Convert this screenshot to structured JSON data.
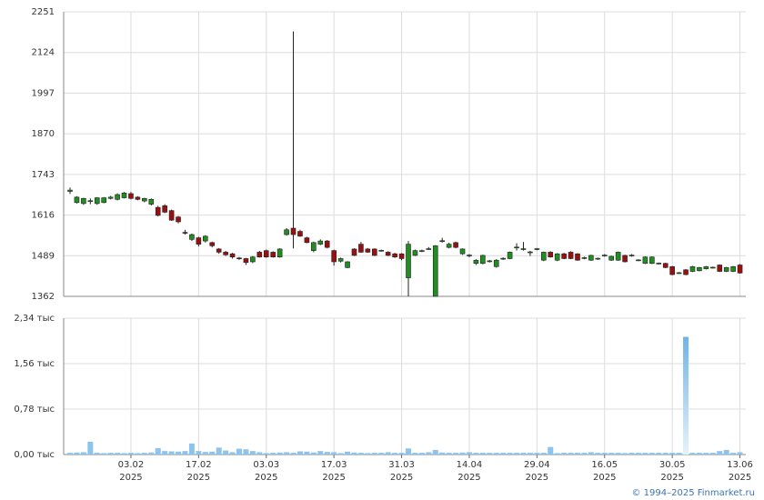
{
  "chart_data": {
    "type": "candlestick",
    "categories": [
      null,
      null,
      null,
      null,
      null,
      null,
      null,
      null,
      null,
      "03.02\n2025",
      null,
      null,
      null,
      null,
      null,
      null,
      null,
      null,
      null,
      "17.02\n2025",
      null,
      null,
      null,
      null,
      null,
      null,
      null,
      null,
      null,
      "03.03\n2025",
      null,
      null,
      null,
      null,
      null,
      null,
      null,
      null,
      null,
      "17.03\n2025",
      null,
      null,
      null,
      null,
      null,
      null,
      null,
      null,
      null,
      "31.03\n2025",
      null,
      null,
      null,
      null,
      null,
      null,
      null,
      null,
      null,
      "14.04\n2025",
      null,
      null,
      null,
      null,
      null,
      null,
      null,
      null,
      null,
      "29.04\n2025",
      null,
      null,
      null,
      null,
      null,
      null,
      null,
      null,
      null,
      "16.05\n2025",
      null,
      null,
      null,
      null,
      null,
      null,
      null,
      null,
      null,
      "30.05\n2025",
      null,
      null,
      null,
      null,
      null,
      null,
      null,
      null,
      null,
      "13.06\n2025"
    ],
    "ohlc": [
      [
        1690,
        1702,
        1682,
        1694
      ],
      [
        1655,
        1675,
        1652,
        1672
      ],
      [
        1652,
        1670,
        1648,
        1668
      ],
      [
        1660,
        1668,
        1650,
        1661
      ],
      [
        1652,
        1672,
        1648,
        1670
      ],
      [
        1655,
        1672,
        1653,
        1670
      ],
      [
        1668,
        1676,
        1665,
        1672
      ],
      [
        1665,
        1684,
        1662,
        1680
      ],
      [
        1670,
        1688,
        1668,
        1685
      ],
      [
        1683,
        1688,
        1665,
        1668
      ],
      [
        1672,
        1675,
        1662,
        1665
      ],
      [
        1660,
        1670,
        1656,
        1668
      ],
      [
        1650,
        1668,
        1646,
        1665
      ],
      [
        1640,
        1645,
        1612,
        1615
      ],
      [
        1645,
        1650,
        1622,
        1625
      ],
      [
        1630,
        1633,
        1598,
        1600
      ],
      [
        1610,
        1613,
        1590,
        1595
      ],
      [
        1562,
        1570,
        1555,
        1560
      ],
      [
        1540,
        1558,
        1535,
        1555
      ],
      [
        1545,
        1548,
        1518,
        1525
      ],
      [
        1535,
        1553,
        1530,
        1550
      ],
      [
        1530,
        1533,
        1515,
        1520
      ],
      [
        1510,
        1513,
        1495,
        1500
      ],
      [
        1500,
        1504,
        1488,
        1492
      ],
      [
        1495,
        1498,
        1480,
        1485
      ],
      [
        1482,
        1485,
        1476,
        1480
      ],
      [
        1480,
        1482,
        1460,
        1468
      ],
      [
        1470,
        1488,
        1466,
        1485
      ],
      [
        1500,
        1504,
        1483,
        1485
      ],
      [
        1505,
        1508,
        1483,
        1485
      ],
      [
        1500,
        1503,
        1483,
        1485
      ],
      [
        1485,
        1512,
        1483,
        1510
      ],
      [
        1555,
        1575,
        1552,
        1570
      ],
      [
        1575,
        2190,
        1512,
        1555
      ],
      [
        1565,
        1570,
        1548,
        1550
      ],
      [
        1545,
        1548,
        1528,
        1530
      ],
      [
        1505,
        1533,
        1500,
        1530
      ],
      [
        1525,
        1540,
        1522,
        1535
      ],
      [
        1535,
        1538,
        1512,
        1515
      ],
      [
        1505,
        1508,
        1458,
        1470
      ],
      [
        1472,
        1483,
        1468,
        1480
      ],
      [
        1452,
        1472,
        1450,
        1470
      ],
      [
        1510,
        1512,
        1488,
        1490
      ],
      [
        1525,
        1532,
        1498,
        1500
      ],
      [
        1510,
        1513,
        1498,
        1500
      ],
      [
        1510,
        1512,
        1488,
        1490
      ],
      [
        1505,
        1508,
        1502,
        1506
      ],
      [
        1500,
        1503,
        1488,
        1490
      ],
      [
        1495,
        1498,
        1482,
        1485
      ],
      [
        1495,
        1497,
        1475,
        1480
      ],
      [
        1420,
        1535,
        1362,
        1525
      ],
      [
        1490,
        1508,
        1488,
        1505
      ],
      [
        1504,
        1508,
        1500,
        1505
      ],
      [
        1510,
        1516,
        1508,
        1511
      ],
      [
        1362,
        1522,
        1362,
        1520
      ],
      [
        1535,
        1545,
        1530,
        1536
      ],
      [
        1515,
        1530,
        1512,
        1525
      ],
      [
        1530,
        1533,
        1512,
        1515
      ],
      [
        1495,
        1512,
        1492,
        1510
      ],
      [
        1490,
        1494,
        1484,
        1491
      ],
      [
        1465,
        1478,
        1460,
        1475
      ],
      [
        1465,
        1492,
        1462,
        1490
      ],
      [
        1472,
        1476,
        1468,
        1473
      ],
      [
        1455,
        1478,
        1452,
        1475
      ],
      [
        1480,
        1484,
        1476,
        1481
      ],
      [
        1480,
        1502,
        1478,
        1500
      ],
      [
        1515,
        1528,
        1505,
        1516
      ],
      [
        1510,
        1532,
        1505,
        1511
      ],
      [
        1500,
        1504,
        1488,
        1501
      ],
      [
        1510,
        1513,
        1506,
        1511
      ],
      [
        1475,
        1502,
        1472,
        1500
      ],
      [
        1500,
        1503,
        1483,
        1485
      ],
      [
        1475,
        1497,
        1472,
        1495
      ],
      [
        1495,
        1498,
        1478,
        1480
      ],
      [
        1500,
        1503,
        1478,
        1480
      ],
      [
        1495,
        1497,
        1473,
        1475
      ],
      [
        1482,
        1486,
        1478,
        1483
      ],
      [
        1475,
        1492,
        1473,
        1490
      ],
      [
        1480,
        1483,
        1476,
        1481
      ],
      [
        1490,
        1494,
        1486,
        1491
      ],
      [
        1475,
        1489,
        1473,
        1487
      ],
      [
        1475,
        1502,
        1473,
        1500
      ],
      [
        1490,
        1492,
        1468,
        1470
      ],
      [
        1490,
        1494,
        1486,
        1491
      ],
      [
        1475,
        1478,
        1472,
        1476
      ],
      [
        1465,
        1487,
        1463,
        1485
      ],
      [
        1465,
        1487,
        1463,
        1485
      ],
      [
        1465,
        1468,
        1462,
        1466
      ],
      [
        1465,
        1467,
        1450,
        1452
      ],
      [
        1455,
        1457,
        1428,
        1430
      ],
      [
        1435,
        1438,
        1432,
        1436
      ],
      [
        1445,
        1447,
        1428,
        1430
      ],
      [
        1440,
        1457,
        1438,
        1455
      ],
      [
        1442,
        1454,
        1440,
        1452
      ],
      [
        1448,
        1457,
        1446,
        1455
      ],
      [
        1452,
        1455,
        1449,
        1453
      ],
      [
        1460,
        1462,
        1438,
        1440
      ],
      [
        1440,
        1454,
        1438,
        1452
      ],
      [
        1440,
        1457,
        1438,
        1455
      ],
      [
        1460,
        1463,
        1433,
        1435
      ]
    ],
    "up_color": "#1f8f1f",
    "down_color": "#9a1010",
    "ylim": [
      1362,
      2251
    ],
    "yticks": [
      1362,
      1489,
      1616,
      1743,
      1870,
      1997,
      2124,
      2251
    ],
    "volumes": [
      30,
      35,
      40,
      220,
      30,
      25,
      30,
      30,
      25,
      30,
      25,
      30,
      35,
      110,
      60,
      55,
      50,
      60,
      190,
      60,
      45,
      50,
      120,
      70,
      40,
      100,
      90,
      60,
      40,
      25,
      30,
      35,
      40,
      30,
      55,
      50,
      35,
      60,
      45,
      40,
      25,
      50,
      35,
      30,
      25,
      30,
      30,
      40,
      30,
      30,
      105,
      30,
      30,
      40,
      80,
      35,
      30,
      30,
      35,
      40,
      30,
      30,
      30,
      30,
      30,
      30,
      30,
      30,
      30,
      30,
      30,
      130,
      25,
      30,
      30,
      30,
      30,
      40,
      30,
      30,
      30,
      30,
      25,
      30,
      30,
      30,
      30,
      30,
      30,
      30,
      30,
      2020,
      30,
      30,
      30,
      30,
      60,
      80,
      30,
      40
    ],
    "volume_color": "#8cc4ee",
    "y2lim": [
      0,
      2340
    ],
    "y2ticks": [
      {
        "value": 0,
        "label": "0,00 тыс"
      },
      {
        "value": 780,
        "label": "0,78 тыс"
      },
      {
        "value": 1560,
        "label": "1,56 тыс"
      },
      {
        "value": 2340,
        "label": "2,34 тыс"
      }
    ],
    "grid": true,
    "credit": "© 1994–2025 Finmarket.ru"
  }
}
